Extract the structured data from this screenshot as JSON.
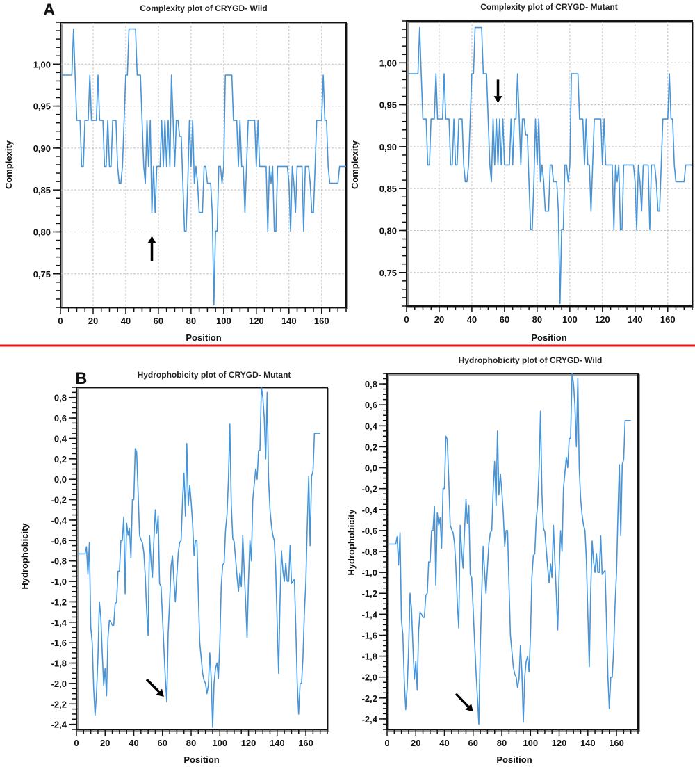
{
  "figure": {
    "divider_color": "#ee1111",
    "line_color": "#3d8fd6"
  },
  "chart_data": [
    {
      "id": "A-wild",
      "panel_letter": "A",
      "type": "line",
      "title": "Complexity plot of CRYGD- Wild",
      "xlabel": "Position",
      "ylabel": "Complexity",
      "xlim": [
        0,
        175
      ],
      "ylim": [
        0.71,
        1.05
      ],
      "xticks": [
        0,
        20,
        40,
        60,
        80,
        100,
        120,
        140,
        160
      ],
      "xtick_labels": [
        "0",
        "20",
        "40",
        "60",
        "80",
        "100",
        "120",
        "140",
        "160"
      ],
      "yticks": [
        0.75,
        0.8,
        0.85,
        0.9,
        0.95,
        1.0
      ],
      "ytick_labels": [
        "0,75",
        "0,80",
        "0,85",
        "0,90",
        "0,95",
        "1,00"
      ],
      "grid": true,
      "annotation": {
        "type": "arrow-up",
        "x": 56,
        "y_from": 0.765,
        "y_to": 0.795
      },
      "x_start": 1,
      "values": [
        0.987,
        0.987,
        0.987,
        0.987,
        0.987,
        0.987,
        0.987,
        1.042,
        0.987,
        0.933,
        0.933,
        0.933,
        0.878,
        0.878,
        0.933,
        0.933,
        0.933,
        0.987,
        0.933,
        0.933,
        0.933,
        0.933,
        0.987,
        0.933,
        0.933,
        0.933,
        0.878,
        0.878,
        0.933,
        0.878,
        0.878,
        0.933,
        0.933,
        0.933,
        0.878,
        0.858,
        0.858,
        0.878,
        0.933,
        0.987,
        0.987,
        1.042,
        1.042,
        1.042,
        1.042,
        1.042,
        0.987,
        0.987,
        0.987,
        0.933,
        0.878,
        0.858,
        0.933,
        0.878,
        0.933,
        0.823,
        0.878,
        0.823,
        0.878,
        0.878,
        0.878,
        0.933,
        0.878,
        0.933,
        0.878,
        0.933,
        0.878,
        0.987,
        0.933,
        0.878,
        0.933,
        0.933,
        0.914,
        0.914,
        0.858,
        0.801,
        0.801,
        0.858,
        0.933,
        0.878,
        0.933,
        0.858,
        0.878,
        0.858,
        0.823,
        0.823,
        0.823,
        0.878,
        0.878,
        0.858,
        0.858,
        0.858,
        0.823,
        0.713,
        0.801,
        0.801,
        0.878,
        0.878,
        0.858,
        0.878,
        0.987,
        0.987,
        0.987,
        0.987,
        0.987,
        0.933,
        0.933,
        0.933,
        0.878,
        0.933,
        0.878,
        0.878,
        0.823,
        0.878,
        0.933,
        0.933,
        0.933,
        0.933,
        0.933,
        0.878,
        0.933,
        0.878,
        0.878,
        0.878,
        0.878,
        0.878,
        0.801,
        0.878,
        0.858,
        0.878,
        0.801,
        0.801,
        0.878,
        0.878,
        0.878,
        0.878,
        0.878,
        0.878,
        0.878,
        0.858,
        0.801,
        0.878,
        0.858,
        0.823,
        0.878,
        0.878,
        0.878,
        0.878,
        0.801,
        0.878,
        0.878,
        0.878,
        0.858,
        0.823,
        0.823,
        0.878,
        0.933,
        0.933,
        0.933,
        0.933,
        0.987,
        0.933,
        0.933,
        0.878,
        0.858,
        0.858,
        0.858,
        0.858,
        0.858,
        0.858,
        0.878,
        0.878,
        0.878,
        0.878,
        0.878
      ]
    },
    {
      "id": "A-mutant",
      "panel_letter": "",
      "type": "line",
      "title": "Complexity plot of CRYGD- Mutant",
      "xlabel": "Position",
      "ylabel": "Complexity",
      "xlim": [
        0,
        175
      ],
      "ylim": [
        0.71,
        1.05
      ],
      "xticks": [
        0,
        20,
        40,
        60,
        80,
        100,
        120,
        140,
        160
      ],
      "xtick_labels": [
        "0",
        "20",
        "40",
        "60",
        "80",
        "100",
        "120",
        "140",
        "160"
      ],
      "yticks": [
        0.75,
        0.8,
        0.85,
        0.9,
        0.95,
        1.0
      ],
      "ytick_labels": [
        "0,75",
        "0,80",
        "0,85",
        "0,90",
        "0,95",
        "1,00"
      ],
      "grid": true,
      "annotation": {
        "type": "arrow-down",
        "x": 56,
        "y_from": 0.98,
        "y_to": 0.952
      },
      "x_start": 1,
      "values": [
        0.987,
        0.987,
        0.987,
        0.987,
        0.987,
        0.987,
        0.987,
        1.042,
        0.987,
        0.933,
        0.933,
        0.933,
        0.878,
        0.878,
        0.933,
        0.933,
        0.933,
        0.987,
        0.933,
        0.933,
        0.933,
        0.933,
        0.987,
        0.933,
        0.933,
        0.933,
        0.878,
        0.878,
        0.933,
        0.878,
        0.878,
        0.933,
        0.933,
        0.933,
        0.878,
        0.858,
        0.858,
        0.878,
        0.933,
        0.987,
        0.987,
        1.042,
        1.042,
        1.042,
        1.042,
        1.042,
        0.987,
        0.987,
        0.987,
        0.933,
        0.878,
        0.858,
        0.933,
        0.878,
        0.933,
        0.878,
        0.933,
        0.878,
        0.933,
        0.878,
        0.878,
        0.878,
        0.878,
        0.933,
        0.878,
        0.933,
        0.933,
        0.987,
        0.933,
        0.878,
        0.933,
        0.933,
        0.914,
        0.914,
        0.858,
        0.801,
        0.801,
        0.858,
        0.933,
        0.878,
        0.933,
        0.858,
        0.878,
        0.858,
        0.823,
        0.823,
        0.823,
        0.878,
        0.878,
        0.858,
        0.858,
        0.858,
        0.823,
        0.713,
        0.801,
        0.801,
        0.878,
        0.878,
        0.858,
        0.878,
        0.987,
        0.987,
        0.987,
        0.987,
        0.987,
        0.933,
        0.933,
        0.933,
        0.878,
        0.933,
        0.878,
        0.878,
        0.823,
        0.878,
        0.933,
        0.933,
        0.933,
        0.933,
        0.933,
        0.878,
        0.933,
        0.878,
        0.878,
        0.878,
        0.878,
        0.878,
        0.801,
        0.878,
        0.858,
        0.878,
        0.801,
        0.801,
        0.878,
        0.878,
        0.878,
        0.878,
        0.878,
        0.878,
        0.878,
        0.858,
        0.801,
        0.878,
        0.858,
        0.823,
        0.878,
        0.878,
        0.878,
        0.878,
        0.801,
        0.878,
        0.878,
        0.878,
        0.858,
        0.823,
        0.823,
        0.878,
        0.933,
        0.933,
        0.933,
        0.933,
        0.987,
        0.933,
        0.933,
        0.878,
        0.858,
        0.858,
        0.858,
        0.858,
        0.858,
        0.858,
        0.878,
        0.878,
        0.878,
        0.878,
        0.878
      ]
    },
    {
      "id": "B-mutant",
      "panel_letter": "B",
      "type": "line",
      "title": "Hydrophobicity plot of CRYGD- Mutant",
      "xlabel": "Position",
      "ylabel": "Hydrophobicity",
      "xlim": [
        0,
        175
      ],
      "ylim": [
        -2.45,
        0.9
      ],
      "xticks": [
        0,
        20,
        40,
        60,
        80,
        100,
        120,
        140,
        160
      ],
      "xtick_labels": [
        "0",
        "20",
        "40",
        "60",
        "80",
        "100",
        "120",
        "140",
        "160"
      ],
      "yticks": [
        -2.4,
        -2.2,
        -2.0,
        -1.8,
        -1.6,
        -1.4,
        -1.2,
        -1.0,
        -0.8,
        -0.6,
        -0.4,
        -0.2,
        0.0,
        0.2,
        0.4,
        0.6,
        0.8
      ],
      "ytick_labels": [
        "-2,4",
        "-2,2",
        "-2,0",
        "-1,8",
        "-1,6",
        "-1,4",
        "-1,2",
        "-1,0",
        "-0,8",
        "-0,6",
        "-0,4",
        "-0,2",
        "0,0",
        "0,2",
        "0,4",
        "0,6",
        "0,8"
      ],
      "grid": false,
      "annotation": {
        "type": "arrow-diag",
        "x_from": 49,
        "y_from": -1.96,
        "x_to": 61,
        "y_to": -2.13
      },
      "x_start": 1,
      "values": [
        -0.73,
        -0.73,
        -0.73,
        -0.73,
        -0.73,
        -0.73,
        -0.66,
        -0.93,
        -0.62,
        -1.45,
        -1.6,
        -2.05,
        -2.31,
        -2.1,
        -1.75,
        -1.2,
        -1.35,
        -1.7,
        -2.02,
        -1.85,
        -2.12,
        -1.55,
        -1.38,
        -1.4,
        -1.43,
        -1.43,
        -1.22,
        -1.2,
        -0.9,
        -0.9,
        -0.6,
        -0.6,
        -0.37,
        -1.12,
        -0.43,
        -0.55,
        -0.48,
        -0.77,
        -0.2,
        -0.2,
        0.3,
        0.27,
        -0.12,
        -0.55,
        -0.59,
        -0.62,
        -0.72,
        -0.95,
        -1.3,
        -1.53,
        -0.55,
        -0.8,
        -0.96,
        -0.6,
        -0.3,
        -0.53,
        -0.36,
        -1.02,
        -1.05,
        -1.35,
        -1.65,
        -1.95,
        -2.18,
        -1.5,
        -1.2,
        -0.85,
        -0.75,
        -1.0,
        -1.2,
        -0.95,
        -0.72,
        -0.62,
        -0.6,
        -0.2,
        0.06,
        -0.36,
        0.35,
        -0.26,
        -0.06,
        -0.22,
        -0.43,
        -0.75,
        -0.6,
        -0.6,
        -1.1,
        -1.6,
        -1.75,
        -1.9,
        -1.97,
        -2.0,
        -2.1,
        -2.02,
        -1.7,
        -1.95,
        -2.43,
        -2.0,
        -1.85,
        -1.8,
        -1.95,
        -1.6,
        -1.05,
        -0.84,
        -0.82,
        -0.5,
        -0.35,
        0.0,
        0.54,
        -0.25,
        -0.58,
        -0.61,
        -0.78,
        -0.95,
        -1.1,
        -0.92,
        -1.05,
        -0.55,
        -0.9,
        -1.2,
        -1.55,
        -1.0,
        -0.6,
        -0.8,
        -0.2,
        -0.05,
        0.1,
        0.0,
        0.28,
        0.28,
        0.9,
        0.8,
        0.6,
        0.2,
        0.85,
        0.0,
        -0.3,
        -0.45,
        -0.55,
        -0.6,
        -0.88,
        -1.4,
        -1.9,
        -1.2,
        -0.7,
        -0.9,
        -1.0,
        -0.82,
        -1.0,
        -1.0,
        -0.65,
        -1.02,
        -1.0,
        -0.98,
        -1.45,
        -2.0,
        -2.3,
        -2.0,
        -2.0,
        -1.75,
        -1.3,
        -1.0,
        -0.45,
        0.03,
        -0.65,
        0.03,
        0.08,
        0.45,
        0.45,
        0.45,
        0.45,
        0.45
      ]
    },
    {
      "id": "B-wild",
      "panel_letter": "",
      "type": "line",
      "title": "Hydrophobicity plot of CRYGD- Wild",
      "xlabel": "Position",
      "ylabel": "Hydrophobicity",
      "xlim": [
        0,
        175
      ],
      "ylim": [
        -2.5,
        0.9
      ],
      "xticks": [
        0,
        20,
        40,
        60,
        80,
        100,
        120,
        140,
        160
      ],
      "xtick_labels": [
        "0",
        "20",
        "40",
        "60",
        "80",
        "100",
        "120",
        "140",
        "160"
      ],
      "yticks": [
        -2.4,
        -2.2,
        -2.0,
        -1.8,
        -1.6,
        -1.4,
        -1.2,
        -1.0,
        -0.8,
        -0.6,
        -0.4,
        -0.2,
        0.0,
        0.2,
        0.4,
        0.6,
        0.8
      ],
      "ytick_labels": [
        "-2,4",
        "-2,2",
        "-2,0",
        "-1,8",
        "-1,6",
        "-1,4",
        "-1,2",
        "-1,0",
        "-0,8",
        "-0,6",
        "-0,4",
        "-0,2",
        "0,0",
        "0,2",
        "0,4",
        "0,6",
        "0,8"
      ],
      "grid": false,
      "annotation": {
        "type": "arrow-diag",
        "x_from": 48,
        "y_from": -2.16,
        "x_to": 60,
        "y_to": -2.33
      },
      "x_start": 1,
      "values": [
        -0.73,
        -0.73,
        -0.73,
        -0.73,
        -0.73,
        -0.73,
        -0.66,
        -0.93,
        -0.62,
        -1.45,
        -1.6,
        -2.05,
        -2.31,
        -2.1,
        -1.75,
        -1.2,
        -1.35,
        -1.7,
        -2.02,
        -1.85,
        -2.12,
        -1.55,
        -1.38,
        -1.4,
        -1.43,
        -1.43,
        -1.22,
        -1.2,
        -0.9,
        -0.9,
        -0.6,
        -0.6,
        -0.37,
        -1.12,
        -0.43,
        -0.55,
        -0.48,
        -0.77,
        -0.2,
        -0.2,
        0.3,
        0.27,
        -0.12,
        -0.55,
        -0.59,
        -0.62,
        -0.72,
        -0.95,
        -1.3,
        -1.53,
        -0.55,
        -0.8,
        -0.96,
        -0.6,
        -0.3,
        -0.53,
        -0.36,
        -1.02,
        -1.05,
        -1.35,
        -1.65,
        -1.95,
        -2.2,
        -2.45,
        -1.7,
        -1.2,
        -0.75,
        -1.0,
        -1.2,
        -0.95,
        -0.72,
        -0.62,
        -0.6,
        -0.2,
        0.06,
        -0.36,
        0.35,
        -0.26,
        -0.06,
        -0.22,
        -0.43,
        -0.75,
        -0.6,
        -0.6,
        -1.1,
        -1.6,
        -1.75,
        -1.9,
        -1.97,
        -2.0,
        -2.1,
        -2.02,
        -1.7,
        -1.95,
        -2.43,
        -2.0,
        -1.85,
        -1.8,
        -1.95,
        -1.6,
        -1.05,
        -0.84,
        -0.82,
        -0.5,
        -0.35,
        0.0,
        0.54,
        -0.25,
        -0.58,
        -0.61,
        -0.78,
        -0.95,
        -1.1,
        -0.92,
        -1.05,
        -0.55,
        -0.9,
        -1.2,
        -1.55,
        -1.0,
        -0.6,
        -0.8,
        -0.2,
        -0.05,
        0.1,
        0.0,
        0.28,
        0.28,
        0.9,
        0.8,
        0.6,
        0.2,
        0.85,
        0.0,
        -0.3,
        -0.45,
        -0.55,
        -0.6,
        -0.88,
        -1.4,
        -1.9,
        -1.2,
        -0.7,
        -0.9,
        -1.0,
        -0.82,
        -1.0,
        -1.0,
        -0.65,
        -1.02,
        -1.0,
        -0.98,
        -1.45,
        -2.0,
        -2.3,
        -2.0,
        -2.0,
        -1.75,
        -1.3,
        -1.0,
        -0.45,
        0.03,
        -0.65,
        0.03,
        0.08,
        0.45,
        0.45,
        0.45,
        0.45,
        0.45
      ]
    }
  ]
}
